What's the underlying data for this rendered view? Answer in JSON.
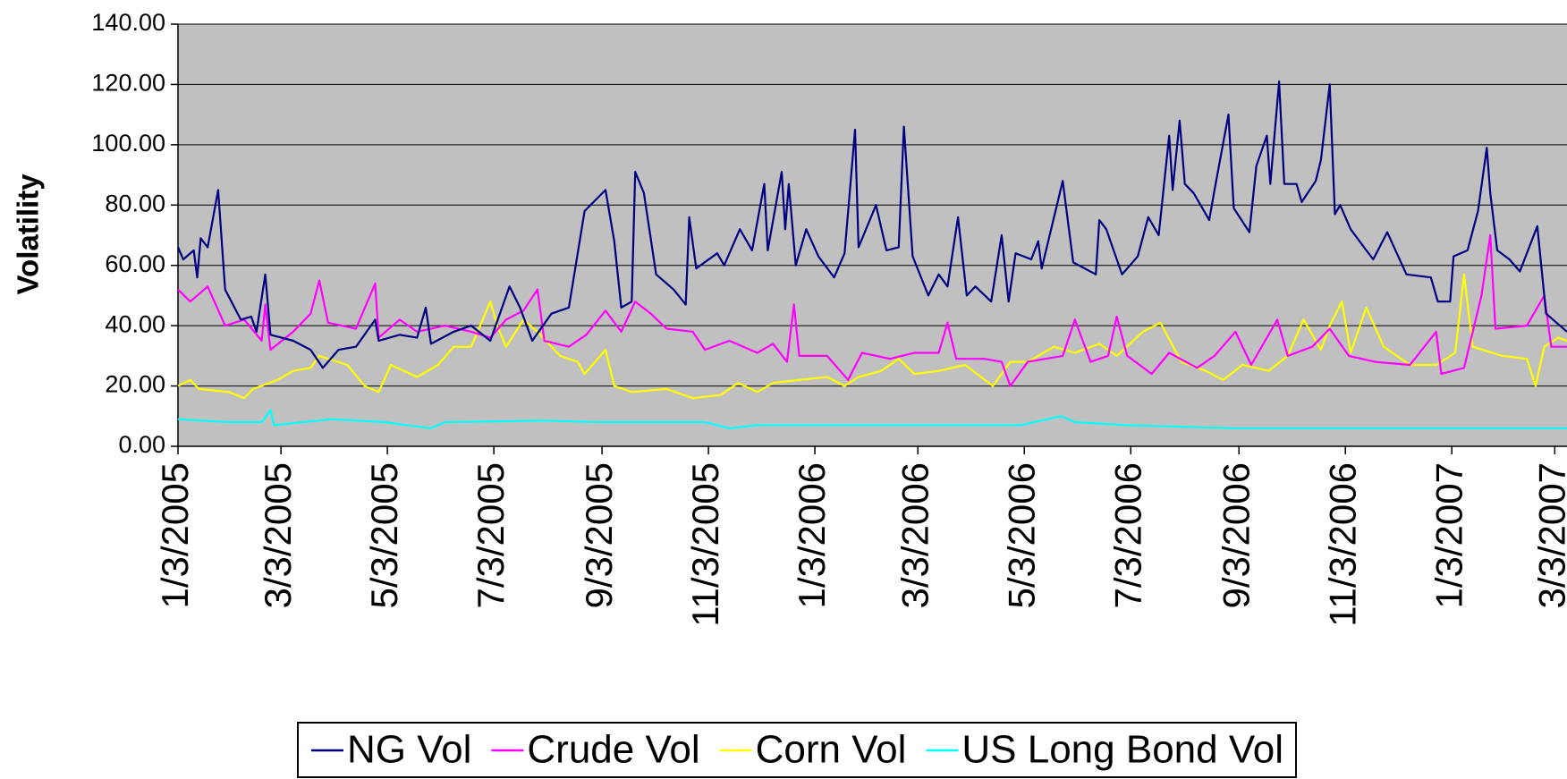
{
  "chart_data": {
    "type": "line",
    "y_label": "Volatility",
    "legend": "bottom",
    "grid": true,
    "plot_background": "#c0c0c0",
    "xlim": [
      "1/3/2005",
      "3/10/2007"
    ],
    "xticks": [
      "1/3/2005",
      "3/3/2005",
      "5/3/2005",
      "7/3/2005",
      "9/3/2005",
      "11/3/2005",
      "1/3/2006",
      "3/3/2006",
      "5/3/2006",
      "7/3/2006",
      "9/3/2006",
      "11/3/2006",
      "1/3/2007",
      "3/3/2007"
    ],
    "ylim": [
      0,
      140
    ],
    "yticks": [
      {
        "value": 0,
        "label": "0.00"
      },
      {
        "value": 20,
        "label": "20.00"
      },
      {
        "value": 40,
        "label": "40.00"
      },
      {
        "value": 60,
        "label": "60.00"
      },
      {
        "value": 80,
        "label": "80.00"
      },
      {
        "value": 100,
        "label": "100.00"
      },
      {
        "value": 120,
        "label": "120.00"
      },
      {
        "value": 140,
        "label": "140.00"
      }
    ],
    "series": [
      {
        "name": "NG Vol",
        "color": "#000080",
        "x": [
          "1/3/2005",
          "1/6/2005",
          "1/12/2005",
          "1/14/2005",
          "1/16/2005",
          "1/20/2005",
          "1/26/2005",
          "1/30/2005",
          "2/8/2005",
          "2/14/2005",
          "2/17/2005",
          "2/22/2005",
          "2/25/2005",
          "3/10/2005",
          "3/20/2005",
          "3/27/2005",
          "4/5/2005",
          "4/15/2005",
          "4/26/2005",
          "4/28/2005",
          "5/10/2005",
          "5/20/2005",
          "5/25/2005",
          "5/28/2005",
          "6/10/2005",
          "6/20/2005",
          "7/1/2005",
          "7/12/2005",
          "7/18/2005",
          "7/25/2005",
          "8/5/2005",
          "8/15/2005",
          "8/24/2005",
          "9/5/2005",
          "9/10/2005",
          "9/14/2005",
          "9/20/2005",
          "9/22/2005",
          "9/27/2005",
          "10/4/2005",
          "10/14/2005",
          "10/21/2005",
          "10/23/2005",
          "10/27/2005",
          "11/8/2005",
          "11/12/2005",
          "11/21/2005",
          "11/28/2005",
          "12/5/2005",
          "12/7/2005",
          "12/15/2005",
          "12/17/2005",
          "12/19/2005",
          "12/23/2005",
          "12/29/2005",
          "1/5/2006",
          "1/14/2006",
          "1/20/2006",
          "1/26/2006",
          "1/28/2006",
          "2/7/2006",
          "2/13/2006",
          "2/20/2006",
          "2/23/2006",
          "2/28/2006",
          "3/9/2006",
          "3/15/2006",
          "3/20/2006",
          "3/26/2006",
          "3/31/2006",
          "4/5/2006",
          "4/14/2006",
          "4/20/2006",
          "4/24/2006",
          "4/28/2006",
          "5/7/2006",
          "5/11/2006",
          "5/13/2006",
          "5/25/2006",
          "5/31/2006",
          "6/13/2006",
          "6/15/2006",
          "6/19/2006",
          "6/28/2006",
          "7/7/2006",
          "7/13/2006",
          "7/19/2006",
          "7/25/2006",
          "7/27/2006",
          "7/31/2006",
          "8/3/2006",
          "8/8/2006",
          "8/17/2006",
          "8/20/2006",
          "8/28/2006",
          "8/31/2006",
          "9/9/2006",
          "9/13/2006",
          "9/19/2006",
          "9/21/2006",
          "9/26/2006",
          "9/29/2006",
          "10/6/2006",
          "10/9/2006",
          "10/17/2006",
          "10/20/2006",
          "10/25/2006",
          "10/28/2006",
          "10/31/2006",
          "11/6/2006",
          "11/15/2006",
          "11/19/2006",
          "11/27/2006",
          "12/8/2006",
          "12/22/2006",
          "12/26/2006",
          "1/2/2007",
          "1/4/2007",
          "1/12/2007",
          "1/18/2007",
          "1/23/2007",
          "1/25/2007",
          "1/29/2007",
          "2/5/2007",
          "2/11/2007",
          "2/21/2007",
          "2/26/2007",
          "3/4/2007",
          "3/10/2007"
        ],
        "values": [
          66,
          62,
          65,
          56,
          69,
          66,
          85,
          52,
          42,
          43,
          38,
          57,
          37,
          35,
          32,
          26,
          32,
          33,
          42,
          35,
          37,
          36,
          46,
          34,
          38,
          40,
          35,
          53,
          46,
          35,
          44,
          46,
          78,
          85,
          68,
          46,
          48,
          91,
          84,
          57,
          52,
          47,
          76,
          59,
          64,
          60,
          72,
          65,
          87,
          65,
          91,
          72,
          87,
          60,
          72,
          63,
          56,
          64,
          105,
          66,
          80,
          65,
          66,
          106,
          63,
          50,
          57,
          53,
          76,
          50,
          53,
          48,
          70,
          48,
          64,
          62,
          68,
          59,
          88,
          61,
          57,
          75,
          72,
          57,
          63,
          76,
          70,
          103,
          85,
          108,
          87,
          84,
          75,
          85,
          110,
          79,
          71,
          93,
          103,
          87,
          121,
          87,
          87,
          81,
          88,
          95,
          120,
          77,
          80,
          72,
          65,
          62,
          71,
          57,
          56,
          48,
          48,
          63,
          65,
          78,
          99,
          84,
          65,
          62,
          58,
          73,
          44,
          41,
          38
        ]
      },
      {
        "name": "Crude Vol",
        "color": "#ff00ff",
        "x": [
          "1/3/2005",
          "1/10/2005",
          "1/20/2005",
          "1/30/2005",
          "2/10/2005",
          "2/20/2005",
          "2/22/2005",
          "2/25/2005",
          "3/10/2005",
          "3/20/2005",
          "3/25/2005",
          "3/30/2005",
          "4/15/2005",
          "4/26/2005",
          "4/28/2005",
          "5/10/2005",
          "5/20/2005",
          "6/5/2005",
          "6/20/2005",
          "7/1/2005",
          "7/10/2005",
          "7/20/2005",
          "7/28/2005",
          "8/1/2005",
          "8/15/2005",
          "8/25/2005",
          "9/5/2005",
          "9/14/2005",
          "9/22/2005",
          "10/1/2005",
          "10/10/2005",
          "10/25/2005",
          "11/1/2005",
          "11/15/2005",
          "12/1/2005",
          "12/10/2005",
          "12/18/2005",
          "12/22/2005",
          "12/25/2005",
          "1/10/2006",
          "1/22/2006",
          "1/30/2006",
          "2/15/2006",
          "3/1/2006",
          "3/15/2006",
          "3/20/2006",
          "3/25/2006",
          "4/10/2006",
          "4/20/2006",
          "4/25/2006",
          "5/5/2006",
          "5/25/2006",
          "6/1/2006",
          "6/10/2006",
          "6/20/2006",
          "6/25/2006",
          "7/1/2006",
          "7/15/2006",
          "7/25/2006",
          "8/10/2006",
          "8/20/2006",
          "9/1/2006",
          "9/10/2006",
          "9/25/2006",
          "10/1/2006",
          "10/15/2006",
          "10/25/2006",
          "11/5/2006",
          "11/20/2006",
          "12/10/2006",
          "12/25/2006",
          "12/28/2006",
          "1/10/2007",
          "1/20/2007",
          "1/25/2007",
          "1/28/2007",
          "2/15/2007",
          "2/25/2007",
          "3/1/2007",
          "3/10/2007"
        ],
        "values": [
          52,
          48,
          53,
          40,
          42,
          35,
          47,
          32,
          38,
          44,
          55,
          41,
          39,
          54,
          36,
          42,
          38,
          40,
          38,
          36,
          42,
          45,
          52,
          35,
          33,
          37,
          45,
          38,
          48,
          44,
          39,
          38,
          32,
          35,
          31,
          34,
          28,
          47,
          30,
          30,
          22,
          31,
          29,
          31,
          31,
          41,
          29,
          29,
          28,
          20,
          28,
          30,
          42,
          28,
          30,
          43,
          30,
          24,
          31,
          26,
          30,
          38,
          27,
          42,
          30,
          33,
          39,
          30,
          28,
          27,
          38,
          24,
          26,
          50,
          70,
          39,
          40,
          50,
          33,
          33
        ]
      },
      {
        "name": "Corn Vol",
        "color": "#ffff00",
        "x": [
          "1/3/2005",
          "1/10/2005",
          "1/15/2005",
          "2/1/2005",
          "2/10/2005",
          "2/15/2005",
          "3/1/2005",
          "3/10/2005",
          "3/20/2005",
          "3/25/2005",
          "4/10/2005",
          "4/20/2005",
          "4/28/2005",
          "5/5/2005",
          "5/20/2005",
          "6/1/2005",
          "6/10/2005",
          "6/20/2005",
          "7/1/2005",
          "7/5/2005",
          "7/10/2005",
          "7/20/2005",
          "7/28/2005",
          "8/10/2005",
          "8/20/2005",
          "8/24/2005",
          "9/5/2005",
          "9/10/2005",
          "9/20/2005",
          "10/10/2005",
          "10/25/2005",
          "11/10/2005",
          "11/20/2005",
          "12/1/2005",
          "12/10/2005",
          "12/25/2005",
          "1/10/2006",
          "1/20/2006",
          "1/28/2006",
          "2/10/2006",
          "2/20/2006",
          "3/1/2006",
          "3/15/2006",
          "3/30/2006",
          "4/15/2006",
          "4/25/2006",
          "5/5/2006",
          "5/20/2006",
          "6/1/2006",
          "6/15/2006",
          "6/25/2006",
          "7/10/2006",
          "7/20/2006",
          "8/1/2006",
          "8/15/2006",
          "8/25/2006",
          "9/5/2006",
          "9/20/2006",
          "10/1/2006",
          "10/10/2006",
          "10/20/2006",
          "10/25/2006",
          "11/1/2006",
          "11/6/2006",
          "11/15/2006",
          "11/25/2006",
          "12/10/2006",
          "12/25/2006",
          "1/5/2007",
          "1/10/2007",
          "1/15/2007",
          "2/1/2007",
          "2/15/2007",
          "2/20/2007",
          "2/25/2007",
          "3/5/2007",
          "3/10/2007"
        ],
        "values": [
          20,
          22,
          19,
          18,
          16,
          19,
          22,
          25,
          26,
          30,
          27,
          20,
          18,
          27,
          23,
          27,
          33,
          33,
          48,
          40,
          33,
          42,
          38,
          30,
          28,
          24,
          32,
          20,
          18,
          19,
          16,
          17,
          21,
          18,
          21,
          22,
          23,
          20,
          23,
          25,
          29,
          24,
          25,
          27,
          20,
          28,
          28,
          33,
          31,
          34,
          30,
          38,
          41,
          28,
          25,
          22,
          27,
          25,
          30,
          42,
          32,
          40,
          48,
          31,
          46,
          33,
          27,
          27,
          31,
          57,
          33,
          30,
          29,
          20,
          33,
          36,
          35
        ]
      },
      {
        "name": "US Long Bond Vol",
        "color": "#00ffff",
        "x": [
          "1/3/2005",
          "2/1/2005",
          "2/20/2005",
          "2/25/2005",
          "2/27/2005",
          "4/1/2005",
          "5/1/2005",
          "5/28/2005",
          "6/5/2005",
          "8/1/2005",
          "9/1/2005",
          "10/1/2005",
          "11/1/2005",
          "11/15/2005",
          "12/1/2005",
          "1/1/2006",
          "3/1/2006",
          "5/1/2006",
          "5/24/2006",
          "6/1/2006",
          "7/1/2006",
          "9/1/2006",
          "11/1/2006",
          "1/1/2007",
          "3/10/2007"
        ],
        "values": [
          9,
          8,
          8,
          12,
          7,
          9,
          8,
          6,
          8,
          8.5,
          8,
          8,
          8,
          6,
          7,
          7,
          7,
          7,
          10,
          8,
          7,
          6,
          6,
          6,
          6
        ]
      }
    ]
  }
}
